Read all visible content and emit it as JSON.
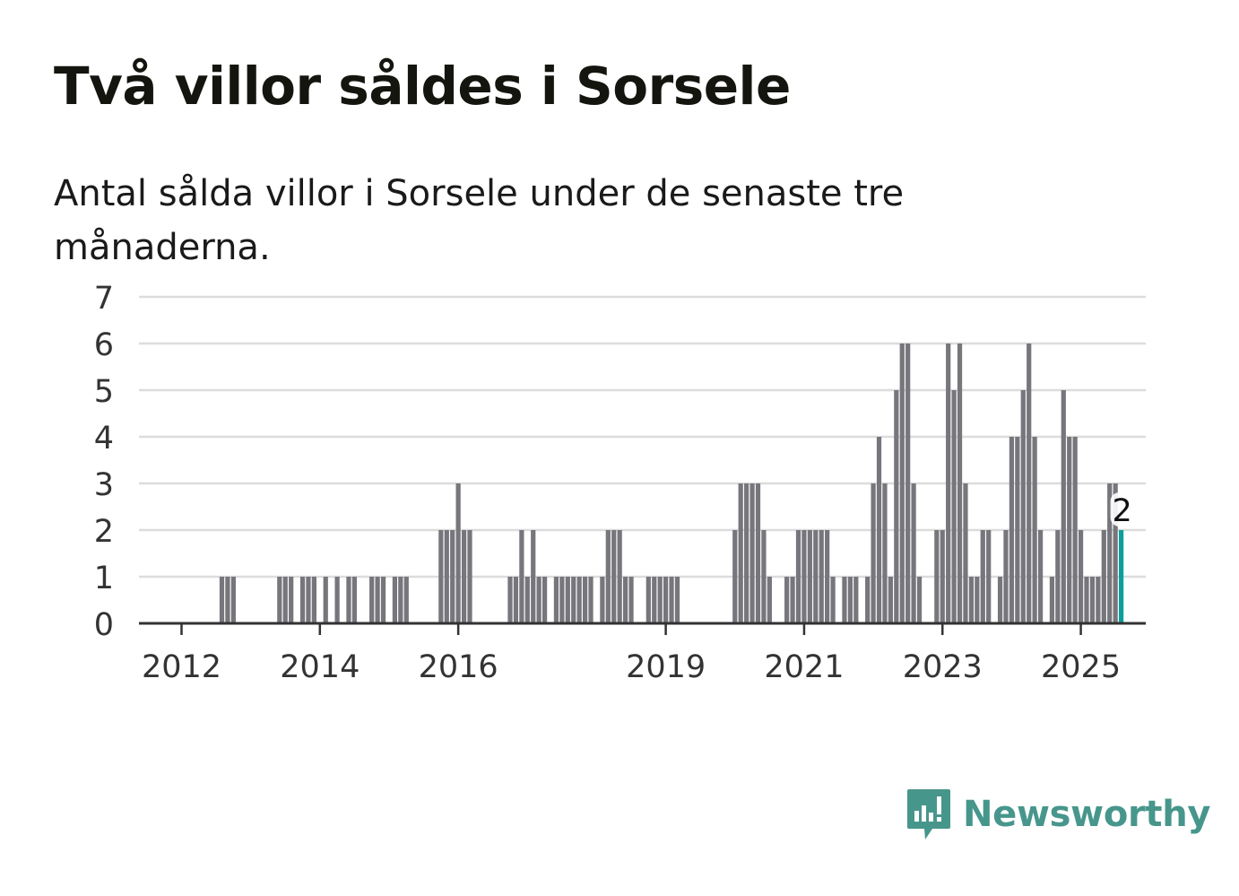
{
  "title": "Två villor såldes i Sorsele",
  "subtitle": "Antal sålda villor i Sorsele under de senaste tre månaderna.",
  "brand": {
    "name": "Newsworthy",
    "color": "#47968c"
  },
  "colors": {
    "bar": "#76767c",
    "highlight": "#0b9e9c",
    "grid": "#dcdcdc",
    "axis": "#333333",
    "tick_text": "#333333"
  },
  "chart_data": {
    "type": "bar",
    "title": "Två villor såldes i Sorsele",
    "subtitle": "Antal sålda villor i Sorsele under de senaste tre månaderna.",
    "xlabel": "",
    "ylabel": "",
    "x_start": "2011-03",
    "x_end": "2025-02",
    "ylim": [
      0,
      7
    ],
    "yticks": [
      0,
      1,
      2,
      3,
      4,
      5,
      6,
      7
    ],
    "xticks": [
      {
        "label": "2012",
        "year": 2012
      },
      {
        "label": "2014",
        "year": 2014
      },
      {
        "label": "2016",
        "year": 2016
      },
      {
        "label": "2019",
        "year": 2019
      },
      {
        "label": "2021",
        "year": 2021
      },
      {
        "label": "2023",
        "year": 2023
      },
      {
        "label": "2025",
        "year": 2025
      }
    ],
    "grid": true,
    "values": [
      0,
      0,
      0,
      0,
      0,
      0,
      0,
      0,
      0,
      0,
      0,
      0,
      0,
      0,
      0,
      0,
      0,
      1,
      1,
      1,
      0,
      0,
      0,
      0,
      0,
      0,
      0,
      1,
      1,
      1,
      0,
      1,
      1,
      1,
      0,
      1,
      0,
      1,
      0,
      1,
      1,
      0,
      0,
      1,
      1,
      1,
      0,
      1,
      1,
      1,
      0,
      0,
      0,
      0,
      0,
      2,
      2,
      2,
      3,
      2,
      2,
      0,
      0,
      0,
      0,
      0,
      0,
      1,
      1,
      2,
      1,
      2,
      1,
      1,
      0,
      1,
      1,
      1,
      1,
      1,
      1,
      1,
      0,
      1,
      2,
      2,
      2,
      1,
      1,
      0,
      0,
      1,
      1,
      1,
      1,
      1,
      1,
      0,
      0,
      0,
      0,
      0,
      0,
      0,
      0,
      0,
      2,
      3,
      3,
      3,
      3,
      2,
      1,
      0,
      0,
      1,
      1,
      2,
      2,
      2,
      2,
      2,
      2,
      1,
      0,
      1,
      1,
      1,
      0,
      1,
      3,
      4,
      3,
      1,
      5,
      6,
      6,
      3,
      1,
      0,
      0,
      2,
      2,
      6,
      5,
      6,
      3,
      1,
      1,
      2,
      2,
      0,
      1,
      2,
      4,
      4,
      5,
      6,
      4,
      2,
      0,
      1,
      2,
      5,
      4,
      4,
      2,
      1,
      1,
      1,
      2,
      3,
      3,
      2
    ],
    "highlight": {
      "label": "2",
      "value": 2,
      "date": "2025-02"
    }
  }
}
